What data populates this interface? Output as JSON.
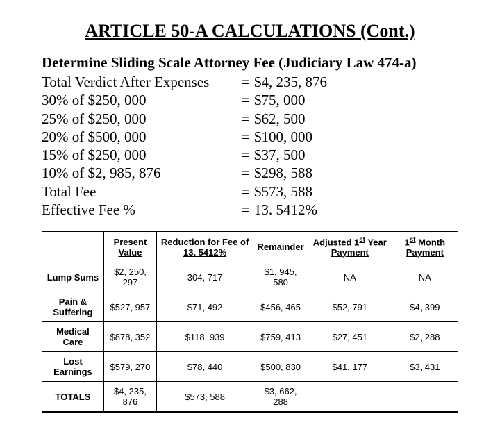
{
  "title": "ARTICLE 50-A CALCULATIONS (Cont.)",
  "subhead": "Determine Sliding Scale Attorney Fee (Judiciary Law 474-a)",
  "calc_rows": [
    {
      "label": "Total Verdict After Expenses",
      "value": "$4, 235, 876"
    },
    {
      "label": "30% of $250, 000",
      "value": "$75, 000"
    },
    {
      "label": "25% of $250, 000",
      "value": "$62, 500"
    },
    {
      "label": "20% of $500, 000",
      "value": "$100, 000"
    },
    {
      "label": "15% of $250, 000",
      "value": "$37, 500"
    },
    {
      "label": "10% of $2, 985, 876",
      "value": "$298, 588"
    },
    {
      "label": "Total Fee",
      "value": "$573, 588"
    },
    {
      "label": "Effective Fee %",
      "value": "13. 5412%"
    }
  ],
  "table": {
    "columns": [
      "",
      "Present Value",
      "Reduction for Fee of 13. 5412%",
      "Remainder",
      "Adjusted 1st Year Payment",
      "1st Month Payment"
    ],
    "rows": [
      {
        "label": "Lump Sums",
        "cells": [
          "$2, 250, 297",
          "304, 717",
          "$1, 945, 580",
          "NA",
          "NA"
        ]
      },
      {
        "label": "Pain & Suffering",
        "cells": [
          "$527, 957",
          "$71, 492",
          "$456, 465",
          "$52, 791",
          "$4, 399"
        ]
      },
      {
        "label": "Medical Care",
        "cells": [
          "$878, 352",
          "$118, 939",
          "$759, 413",
          "$27, 451",
          "$2, 288"
        ]
      },
      {
        "label": "Lost Earnings",
        "cells": [
          "$579, 270",
          "$78, 440",
          "$500, 830",
          "$41, 177",
          "$3, 431"
        ]
      },
      {
        "label": "TOTALS",
        "cells": [
          "$4, 235, 876",
          "$573, 588",
          "$3, 662, 288",
          "",
          ""
        ]
      }
    ]
  },
  "style": {
    "background_color": "#ffffff",
    "text_color": "#000000",
    "title_fontsize": 26,
    "body_fontsize": 21,
    "table_fontsize": 13,
    "table_font": "Arial",
    "body_font": "Times New Roman",
    "border_color": "#000000"
  }
}
